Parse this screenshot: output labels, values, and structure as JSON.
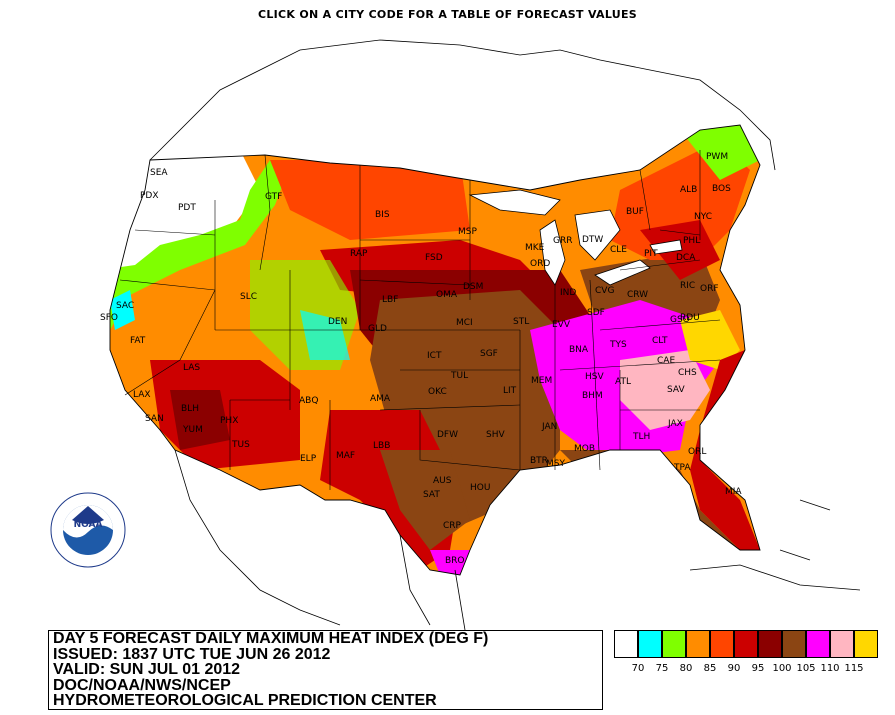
{
  "header": {
    "instruction": "CLICK ON A CITY CODE FOR A TABLE OF FORECAST VALUES"
  },
  "info": {
    "title": "DAY 5 FORECAST DAILY MAXIMUM HEAT INDEX (DEG F)",
    "issued": "ISSUED: 1837 UTC TUE JUN 26 2012",
    "valid": "VALID: SUN JUL 01 2012",
    "agency": "DOC/NOAA/NWS/NCEP",
    "center": "HYDROMETEOROLOGICAL PREDICTION CENTER"
  },
  "logo": {
    "text": "NOAA",
    "ring_text": "NATIONAL OCEANIC AND ATMOSPHERIC ADMINISTRATION",
    "icon": "noaa-logo"
  },
  "legend": {
    "bins": [
      {
        "color": "#ffffff",
        "label": "70"
      },
      {
        "color": "#00ffff",
        "label": "75"
      },
      {
        "color": "#7fff00",
        "label": "80"
      },
      {
        "color": "#ff8c00",
        "label": "85"
      },
      {
        "color": "#ff4500",
        "label": "90"
      },
      {
        "color": "#cc0000",
        "label": "95"
      },
      {
        "color": "#8b0000",
        "label": "100"
      },
      {
        "color": "#8b4513",
        "label": "105"
      },
      {
        "color": "#ff00ff",
        "label": "110"
      },
      {
        "color": "#ffb6c1",
        "label": "115"
      },
      {
        "color": "#ffd700",
        "label": ""
      }
    ]
  },
  "cities": [
    "SEA",
    "PDX",
    "PDT",
    "GTF",
    "BIS",
    "MSP",
    "SAC",
    "SFO",
    "FAT",
    "LAX",
    "SAN",
    "LAS",
    "SLC",
    "DEN",
    "RAP",
    "FSD",
    "OMA",
    "DSM",
    "MKE",
    "ORD",
    "GRR",
    "DTW",
    "CLE",
    "BUF",
    "ALB",
    "PWM",
    "BOS",
    "NYC",
    "PHL",
    "DCA",
    "RIC",
    "ORF",
    "RDU",
    "CLT",
    "GSO",
    "CAE",
    "CHS",
    "SAV",
    "ATL",
    "BHM",
    "HSV",
    "BNA",
    "TYS",
    "CRW",
    "PIT",
    "CVG",
    "SDF",
    "IND",
    "STL",
    "EVV",
    "MEM",
    "LIT",
    "JAN",
    "MOB",
    "MSY",
    "BTR",
    "SHV",
    "DFW",
    "OKC",
    "TUL",
    "ICT",
    "MCI",
    "SGF",
    "LBF",
    "GLD",
    "ABQ",
    "AMA",
    "LBB",
    "MAF",
    "ELP",
    "TUS",
    "PHX",
    "YUM",
    "BLH",
    "HOU",
    "AUS",
    "SAT",
    "CRP",
    "BRO",
    "TLH",
    "JAX",
    "ORL",
    "TPA",
    "MIA"
  ]
}
